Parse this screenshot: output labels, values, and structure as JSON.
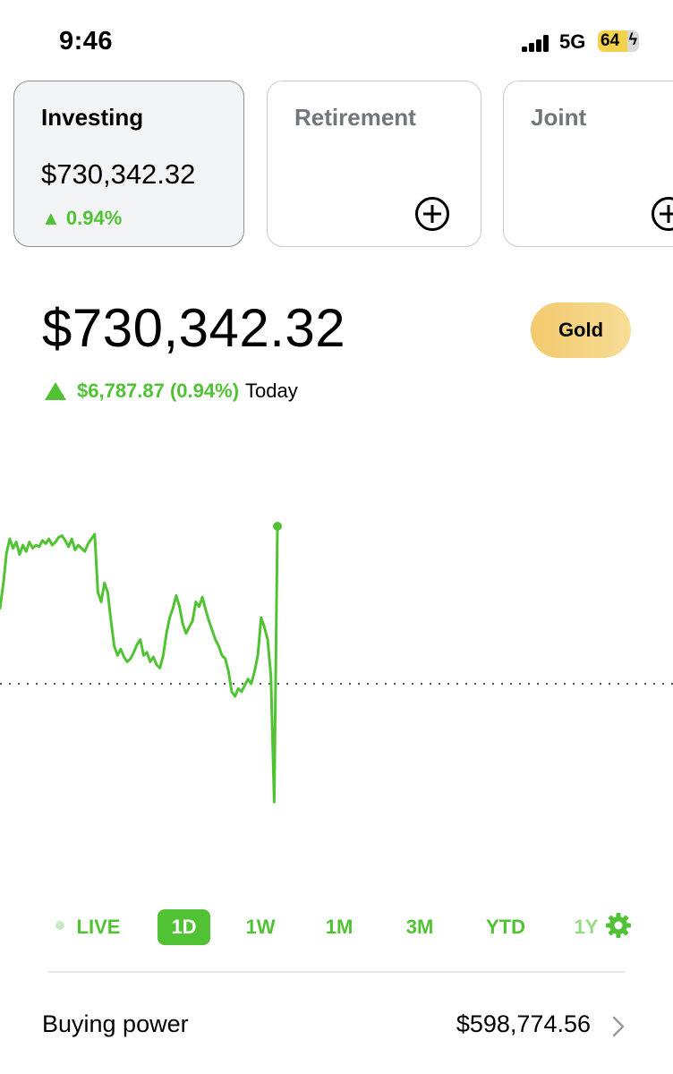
{
  "status_bar": {
    "time": "9:46",
    "network": "5G",
    "battery": "64"
  },
  "accounts": [
    {
      "name": "Investing",
      "value": "$730,342.32",
      "change": "0.94%",
      "active": true
    },
    {
      "name": "Retirement",
      "action_icon": "add-circle-icon"
    },
    {
      "name": "Joint",
      "action_icon": "add-circle-icon"
    }
  ],
  "portfolio": {
    "value": "$730,342.32",
    "badge": "Gold",
    "change_amount": "$6,787.87 (0.94%)",
    "change_period": "Today"
  },
  "chart_data": {
    "type": "line",
    "color": "#51c234",
    "baseline_style": "dotted",
    "relative_values": [
      0.48,
      0.63,
      0.83,
      0.92,
      0.86,
      0.9,
      0.82,
      0.88,
      0.84,
      0.9,
      0.86,
      0.88,
      0.87,
      0.91,
      0.89,
      0.92,
      0.88,
      0.9,
      0.93,
      0.94,
      0.91,
      0.87,
      0.92,
      0.85,
      0.88,
      0.86,
      0.84,
      0.89,
      0.92,
      0.95,
      0.58,
      0.52,
      0.64,
      0.58,
      0.4,
      0.24,
      0.18,
      0.22,
      0.17,
      0.14,
      0.16,
      0.2,
      0.25,
      0.28,
      0.18,
      0.2,
      0.14,
      0.17,
      0.12,
      0.1,
      0.18,
      0.32,
      0.42,
      0.48,
      0.56,
      0.49,
      0.38,
      0.32,
      0.36,
      0.4,
      0.52,
      0.49,
      0.55,
      0.47,
      0.4,
      0.34,
      0.28,
      0.24,
      0.18,
      0.16,
      0.08,
      -0.05,
      -0.08,
      -0.03,
      -0.05,
      -0.01,
      0.03,
      0.0,
      0.08,
      0.18,
      0.42,
      0.36,
      0.28,
      0.05,
      -0.75,
      1.0
    ],
    "baseline": 0
  },
  "ranges": {
    "items": [
      "LIVE",
      "1D",
      "1W",
      "1M",
      "3M",
      "YTD",
      "1Y"
    ],
    "selected": "1D",
    "settings_icon": "gear-icon"
  },
  "buying_power": {
    "label": "Buying power",
    "value": "$598,774.56"
  }
}
